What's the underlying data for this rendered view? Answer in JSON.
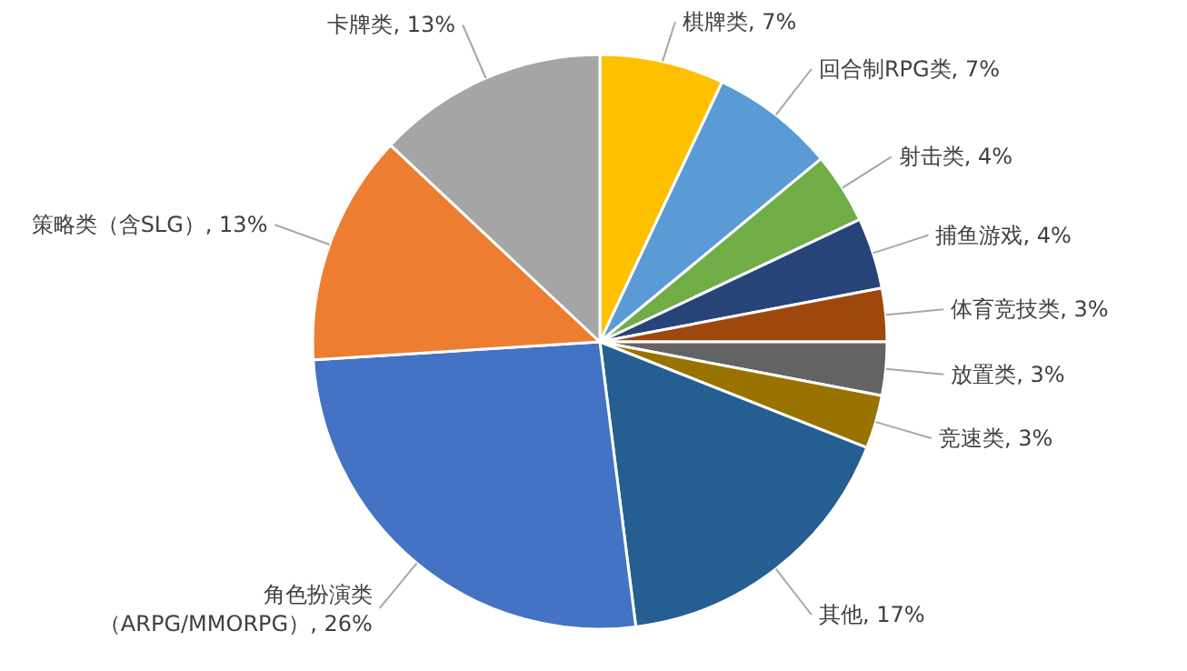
{
  "chart_data": {
    "type": "pie",
    "categories": [
      "棋牌类",
      "回合制RPG类",
      "射击类",
      "捕鱼游戏",
      "体育竞技类",
      "放置类",
      "竞速类",
      "其他",
      "角色扮演类（ARPG/MMORPG）",
      "策略类（含SLG）",
      "卡牌类"
    ],
    "values": [
      7,
      7,
      4,
      4,
      3,
      3,
      3,
      17,
      26,
      13,
      13
    ],
    "value_labels": [
      "7%",
      "7%",
      "4%",
      "4%",
      "3%",
      "3%",
      "3%",
      "17%",
      "26%",
      "13%",
      "13%"
    ],
    "colors": [
      "#ffc000",
      "#5b9bd5",
      "#70ad47",
      "#264478",
      "#9e480e",
      "#636363",
      "#997300",
      "#255e91",
      "#4472c4",
      "#ed7d31",
      "#a5a5a5"
    ]
  }
}
